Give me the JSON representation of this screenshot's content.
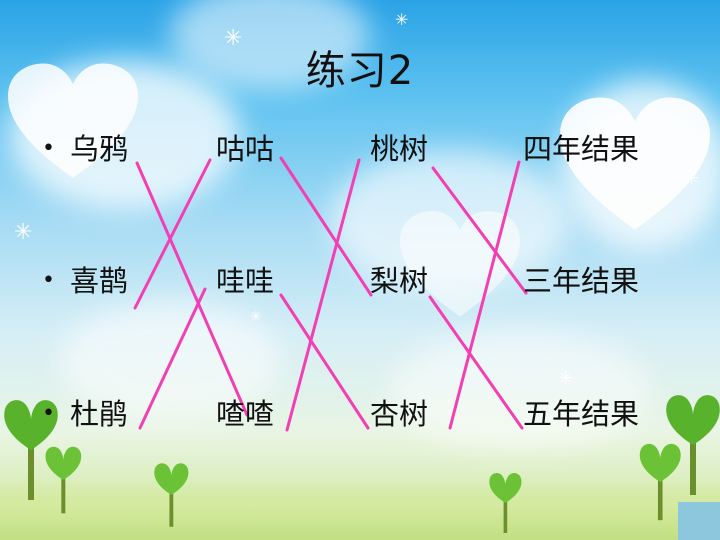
{
  "slide": {
    "title": "练习2",
    "rows": [
      {
        "bullet": "•",
        "col1": "乌鸦",
        "col2": "咕咕",
        "col3": "桃树",
        "col4": "四年结果"
      },
      {
        "bullet": "•",
        "col1": "喜鹊",
        "col2": "哇哇",
        "col3": "梨树",
        "col4": "三年结果"
      },
      {
        "bullet": "•",
        "col1": "杜鹃",
        "col2": "喳喳",
        "col3": "杏树",
        "col4": "五年结果"
      }
    ],
    "matching_line_color": "#f23fb4",
    "connections": [
      {
        "from": "乌鸦",
        "to": "喳喳"
      },
      {
        "from": "喜鹊",
        "to": "咕咕"
      },
      {
        "from": "杜鹃",
        "to": "哇哇"
      },
      {
        "from": "咕咕",
        "to": "梨树"
      },
      {
        "from": "哇哇",
        "to": "杏树"
      },
      {
        "from": "喳喳",
        "to": "桃树"
      },
      {
        "from": "桃树",
        "to": "三年结果"
      },
      {
        "from": "梨树",
        "to": "五年结果"
      },
      {
        "from": "杏树",
        "to": "四年结果"
      }
    ]
  }
}
